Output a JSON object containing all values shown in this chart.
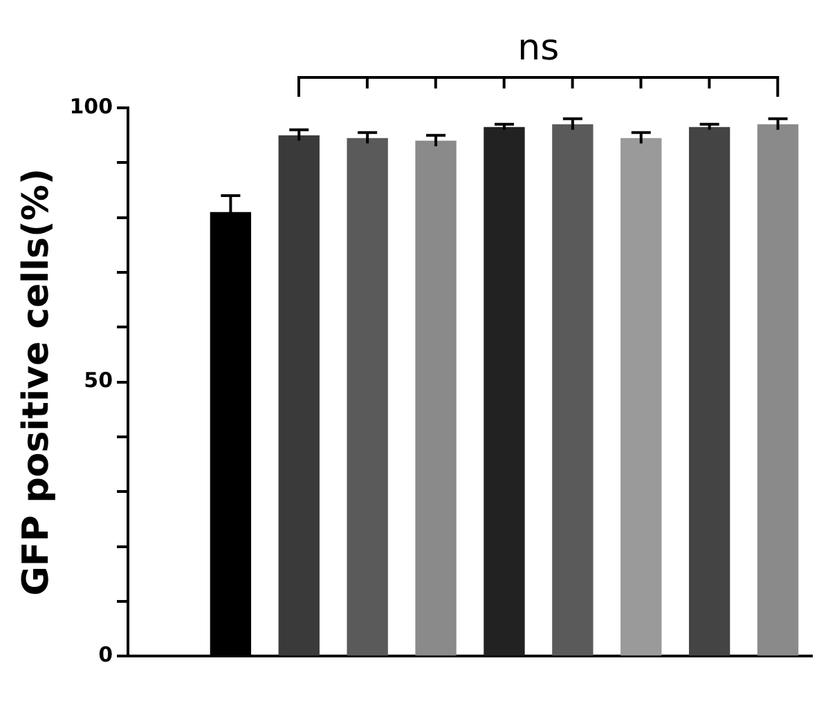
{
  "chart_data": {
    "type": "bar",
    "ylabel": "GFP positive cells(%)",
    "categories": [
      null,
      null,
      null,
      null,
      null,
      null,
      null,
      null,
      null,
      null
    ],
    "values": [
      null,
      81,
      95,
      94.5,
      94,
      96.5,
      97,
      94.5,
      96.5,
      97
    ],
    "errors": [
      null,
      3,
      1,
      1,
      1,
      0.5,
      1,
      1,
      0.5,
      1
    ],
    "colors": [
      "#000000",
      "#000000",
      "#3a3a3a",
      "#5a5a5a",
      "#8a8a8a",
      "#222222",
      "#5a5a5a",
      "#9a9a9a",
      "#444444",
      "#8a8a8a"
    ],
    "ylim": [
      0,
      100
    ],
    "yticks": [
      0,
      {
        "value": 10,
        "label": null
      },
      {
        "value": 20,
        "label": null
      },
      {
        "value": 30,
        "label": null
      },
      {
        "value": 40,
        "label": null
      },
      50,
      {
        "value": 60,
        "label": null
      },
      {
        "value": 70,
        "label": null
      },
      {
        "value": 80,
        "label": null
      },
      {
        "value": 90,
        "label": null
      },
      100
    ],
    "annotations": [
      "ns"
    ]
  }
}
